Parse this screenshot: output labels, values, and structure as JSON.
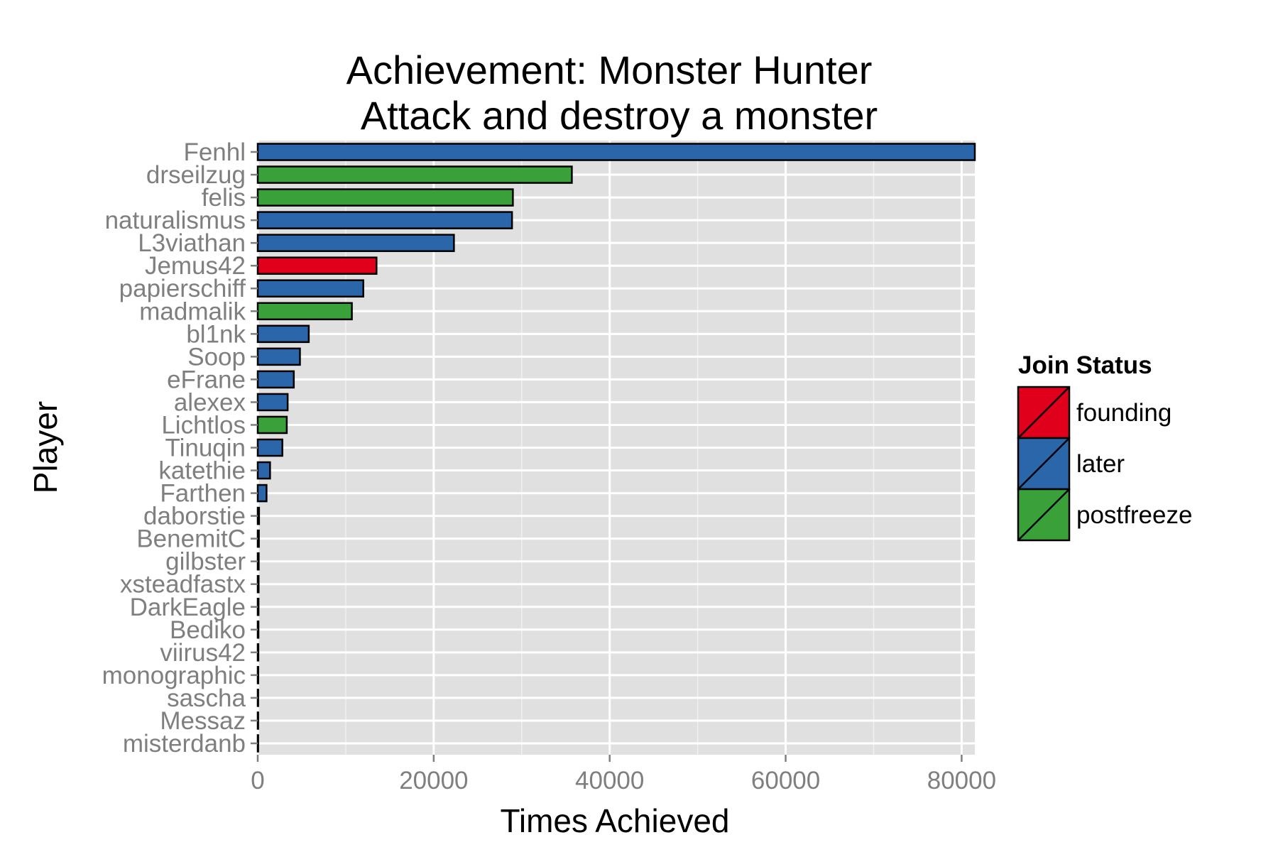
{
  "chart_data": {
    "type": "bar",
    "orientation": "horizontal",
    "title": "Achievement: Monster Hunter",
    "subtitle": "Attack and destroy a monster",
    "xlabel": "Times Achieved",
    "ylabel": "Player",
    "xlim": [
      0,
      81500
    ],
    "xticks": [
      0,
      20000,
      40000,
      60000,
      80000
    ],
    "xtick_labels": [
      "0",
      "20000",
      "40000",
      "60000",
      "80000"
    ],
    "grid": true,
    "legend": {
      "title": "Join Status",
      "position": "right",
      "entries": [
        {
          "key": "founding",
          "label": "founding",
          "color": "#e0001b"
        },
        {
          "key": "later",
          "label": "later",
          "color": "#2b66aa"
        },
        {
          "key": "postfreeze",
          "label": "postfreeze",
          "color": "#3aa13a"
        }
      ]
    },
    "categories": [
      "Fenhl",
      "drseilzug",
      "felis",
      "naturalismus",
      "L3viathan",
      "Jemus42",
      "papierschiff",
      "madmalik",
      "bl1nk",
      "Soop",
      "eFrane",
      "alexex",
      "Lichtlos",
      "Tinuqin",
      "katethie",
      "Farthen",
      "daborstie",
      "BenemitC",
      "gilbster",
      "xsteadfastx",
      "DarkEagle",
      "Bediko",
      "viirus42",
      "monographic",
      "sascha",
      "Messaz",
      "misterdanb"
    ],
    "values": [
      81500,
      35700,
      29000,
      28900,
      22300,
      13500,
      12000,
      10700,
      5800,
      4800,
      4100,
      3400,
      3300,
      2800,
      1400,
      1000,
      150,
      130,
      110,
      100,
      90,
      80,
      70,
      60,
      50,
      40,
      30
    ],
    "status": [
      "later",
      "postfreeze",
      "postfreeze",
      "later",
      "later",
      "founding",
      "later",
      "postfreeze",
      "later",
      "later",
      "later",
      "later",
      "postfreeze",
      "later",
      "later",
      "later",
      "later",
      "later",
      "later",
      "later",
      "later",
      "later",
      "later",
      "later",
      "later",
      "later",
      "later"
    ]
  }
}
